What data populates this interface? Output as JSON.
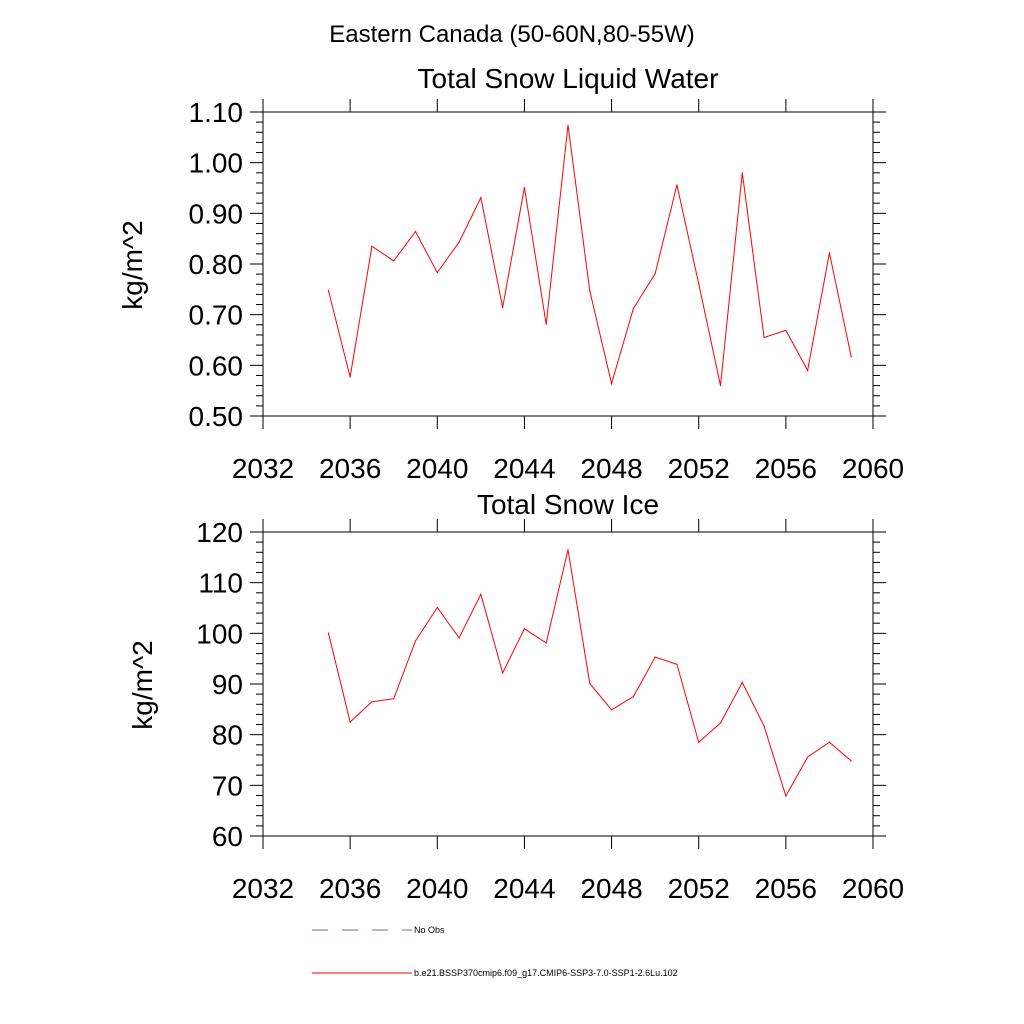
{
  "suptitle": "Eastern Canada (50-60N,80-55W)",
  "chart_data": [
    {
      "type": "line",
      "title": "Total Snow Liquid Water",
      "xlabel": "",
      "ylabel": "kg/m^2",
      "xlim": [
        2032,
        2060
      ],
      "ylim": [
        0.5,
        1.1
      ],
      "xticks": [
        2032,
        2036,
        2040,
        2044,
        2048,
        2052,
        2056,
        2060
      ],
      "xtick_labels": [
        "2032",
        "2036",
        "2040",
        "2044",
        "2048",
        "2052",
        "2056",
        "2060"
      ],
      "yticks": [
        0.5,
        0.6,
        0.7,
        0.8,
        0.9,
        1.0,
        1.1
      ],
      "ytick_labels": [
        "0.50",
        "0.60",
        "0.70",
        "0.80",
        "0.90",
        "1.00",
        "1.10"
      ],
      "grid": false,
      "series": [
        {
          "name": "b.e21.BSSP370cmip6.f09_g17.CMIP6-SSP3-7.0-SSP1-2.6Lu.102",
          "color": "#ff0000",
          "x": [
            2035,
            2036,
            2037,
            2038,
            2039,
            2040,
            2041,
            2042,
            2043,
            2044,
            2045,
            2046,
            2047,
            2048,
            2049,
            2050,
            2051,
            2052,
            2053,
            2054,
            2055,
            2056,
            2057,
            2058,
            2059
          ],
          "y": [
            0.748,
            0.577,
            0.835,
            0.806,
            0.864,
            0.783,
            0.843,
            0.931,
            0.714,
            0.951,
            0.681,
            1.074,
            0.747,
            0.564,
            0.712,
            0.781,
            0.956,
            0.761,
            0.56,
            0.98,
            0.655,
            0.669,
            0.59,
            0.822,
            0.617
          ]
        }
      ]
    },
    {
      "type": "line",
      "title": "Total Snow Ice",
      "xlabel": "",
      "ylabel": "kg/m^2",
      "xlim": [
        2032,
        2060
      ],
      "ylim": [
        60,
        120
      ],
      "xticks": [
        2032,
        2036,
        2040,
        2044,
        2048,
        2052,
        2056,
        2060
      ],
      "xtick_labels": [
        "2032",
        "2036",
        "2040",
        "2044",
        "2048",
        "2052",
        "2056",
        "2060"
      ],
      "yticks": [
        60,
        70,
        80,
        90,
        100,
        110,
        120
      ],
      "ytick_labels": [
        "60",
        "70",
        "80",
        "90",
        "100",
        "110",
        "120"
      ],
      "grid": false,
      "series": [
        {
          "name": "b.e21.BSSP370cmip6.f09_g17.CMIP6-SSP3-7.0-SSP1-2.6Lu.102",
          "color": "#ff0000",
          "x": [
            2035,
            2036,
            2037,
            2038,
            2039,
            2040,
            2041,
            2042,
            2043,
            2044,
            2045,
            2046,
            2047,
            2048,
            2049,
            2050,
            2051,
            2052,
            2053,
            2054,
            2055,
            2056,
            2057,
            2058,
            2059
          ],
          "y": [
            100.1,
            82.5,
            86.5,
            87.1,
            98.5,
            105.1,
            99.1,
            107.7,
            92.2,
            100.9,
            98.1,
            116.5,
            90.1,
            84.9,
            87.5,
            95.3,
            93.9,
            78.5,
            82.3,
            90.3,
            81.7,
            67.9,
            75.6,
            78.5,
            74.8
          ]
        }
      ]
    }
  ],
  "legend": {
    "placement": "bottom",
    "entries": [
      {
        "label": "No Obs",
        "color": "#6070b0",
        "style": "dashed"
      },
      {
        "label": "b.e21.BSSP370cmip6.f09_g17.CMIP6-SSP3-7.0-SSP1-2.6Lu.102",
        "color": "#ff0000",
        "style": "solid"
      }
    ]
  }
}
